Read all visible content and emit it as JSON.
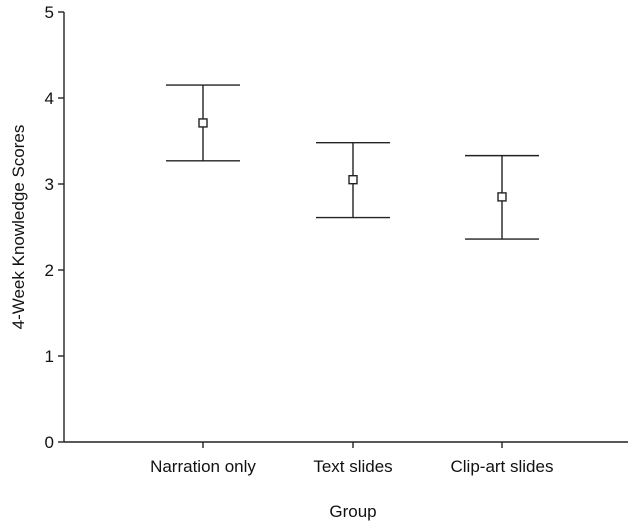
{
  "chart_data": {
    "type": "scatter",
    "subtype": "error-bar",
    "xlabel": "Group",
    "ylabel": "4-Week Knowledge Scores",
    "ylim": [
      0,
      5
    ],
    "yticks": [
      "0",
      "1",
      "2",
      "3",
      "4",
      "5"
    ],
    "categories": [
      "Narration only",
      "Text slides",
      "Clip-art slides"
    ],
    "series": [
      {
        "mean": [
          3.71,
          3.05,
          2.85
        ],
        "lower": [
          3.27,
          2.61,
          2.36
        ],
        "upper": [
          4.15,
          3.48,
          3.33
        ]
      }
    ],
    "grid": false,
    "legend": "none"
  }
}
